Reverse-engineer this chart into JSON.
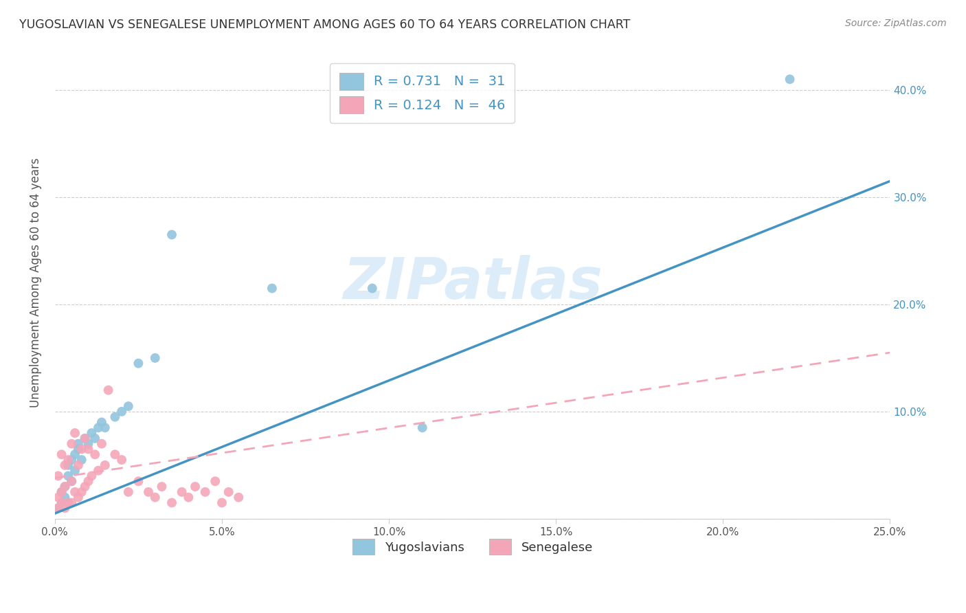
{
  "title": "YUGOSLAVIAN VS SENEGALESE UNEMPLOYMENT AMONG AGES 60 TO 64 YEARS CORRELATION CHART",
  "source": "Source: ZipAtlas.com",
  "ylabel": "Unemployment Among Ages 60 to 64 years",
  "xlim": [
    0.0,
    0.25
  ],
  "ylim": [
    0.0,
    0.44
  ],
  "xticks": [
    0.0,
    0.05,
    0.1,
    0.15,
    0.2,
    0.25
  ],
  "yticks": [
    0.0,
    0.1,
    0.2,
    0.3,
    0.4
  ],
  "ytick_labels": [
    "",
    "10.0%",
    "20.0%",
    "30.0%",
    "40.0%"
  ],
  "xtick_labels": [
    "0.0%",
    "5.0%",
    "10.0%",
    "15.0%",
    "20.0%",
    "25.0%"
  ],
  "blue_color": "#92c5de",
  "pink_color": "#f4a6b8",
  "blue_line_color": "#4393c3",
  "pink_line_color": "#d6604d",
  "watermark_text": "ZIPatlas",
  "yug_scatter_x": [
    0.001,
    0.002,
    0.002,
    0.003,
    0.003,
    0.004,
    0.004,
    0.005,
    0.005,
    0.006,
    0.006,
    0.007,
    0.007,
    0.008,
    0.009,
    0.01,
    0.011,
    0.012,
    0.013,
    0.014,
    0.015,
    0.018,
    0.02,
    0.022,
    0.025,
    0.03,
    0.035,
    0.065,
    0.095,
    0.11,
    0.22
  ],
  "yug_scatter_y": [
    0.01,
    0.015,
    0.025,
    0.02,
    0.03,
    0.04,
    0.05,
    0.035,
    0.055,
    0.045,
    0.06,
    0.065,
    0.07,
    0.055,
    0.075,
    0.07,
    0.08,
    0.075,
    0.085,
    0.09,
    0.085,
    0.095,
    0.1,
    0.105,
    0.145,
    0.15,
    0.265,
    0.215,
    0.215,
    0.085,
    0.41
  ],
  "sen_scatter_x": [
    0.001,
    0.001,
    0.001,
    0.002,
    0.002,
    0.002,
    0.003,
    0.003,
    0.003,
    0.004,
    0.004,
    0.005,
    0.005,
    0.005,
    0.006,
    0.006,
    0.007,
    0.007,
    0.008,
    0.008,
    0.009,
    0.009,
    0.01,
    0.01,
    0.011,
    0.012,
    0.013,
    0.014,
    0.015,
    0.016,
    0.018,
    0.02,
    0.022,
    0.025,
    0.028,
    0.03,
    0.032,
    0.035,
    0.038,
    0.04,
    0.042,
    0.045,
    0.048,
    0.05,
    0.052,
    0.055
  ],
  "sen_scatter_y": [
    0.01,
    0.02,
    0.04,
    0.015,
    0.025,
    0.06,
    0.01,
    0.03,
    0.05,
    0.015,
    0.055,
    0.015,
    0.035,
    0.07,
    0.025,
    0.08,
    0.02,
    0.05,
    0.025,
    0.065,
    0.03,
    0.075,
    0.035,
    0.065,
    0.04,
    0.06,
    0.045,
    0.07,
    0.05,
    0.12,
    0.06,
    0.055,
    0.025,
    0.035,
    0.025,
    0.02,
    0.03,
    0.015,
    0.025,
    0.02,
    0.03,
    0.025,
    0.035,
    0.015,
    0.025,
    0.02
  ],
  "yug_line_x0": 0.0,
  "yug_line_x1": 0.25,
  "yug_line_y0": 0.005,
  "yug_line_y1": 0.315,
  "sen_line_x0": 0.0,
  "sen_line_x1": 0.25,
  "sen_line_y0": 0.038,
  "sen_line_y1": 0.155
}
